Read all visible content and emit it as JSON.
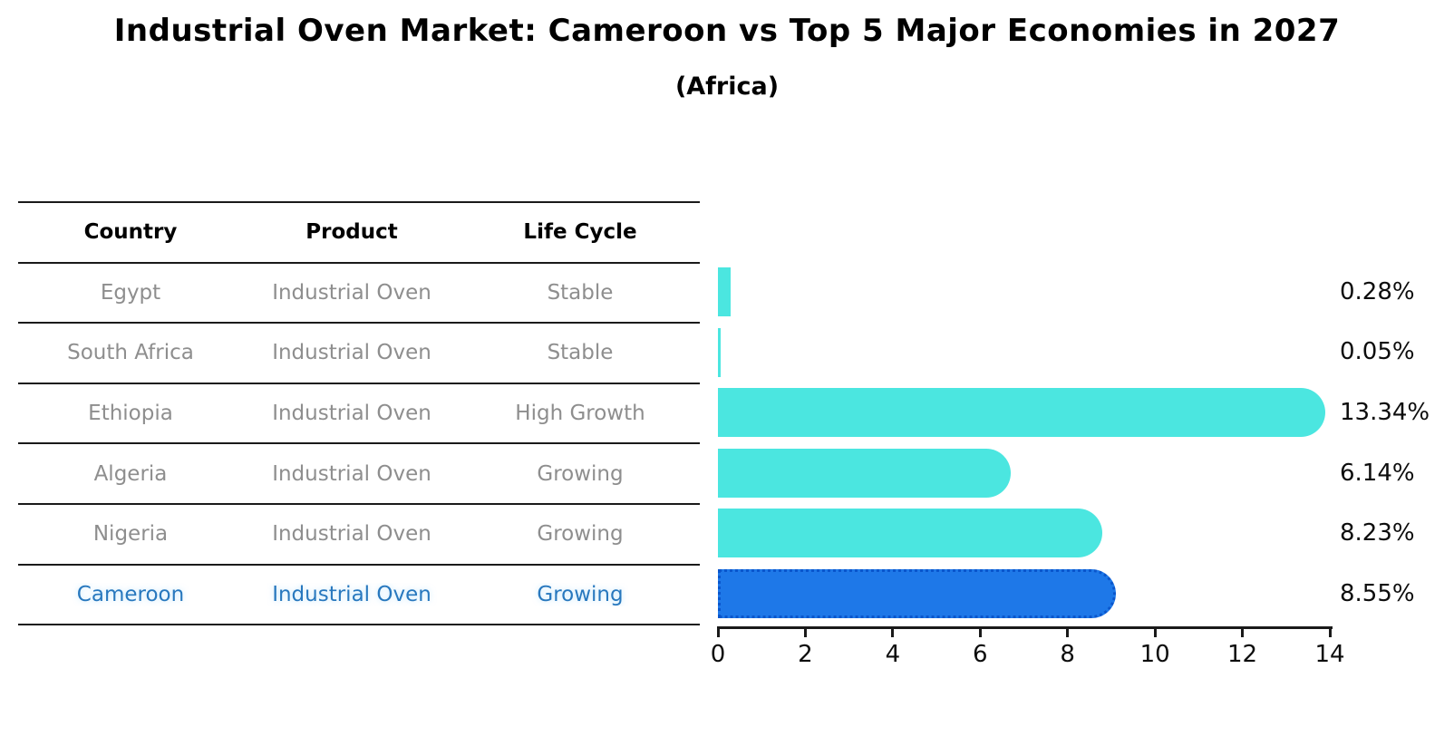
{
  "title": "Industrial Oven Market: Cameroon vs Top 5 Major Economies in 2027",
  "subtitle": "(Africa)",
  "table": {
    "headers": [
      "Country",
      "Product",
      "Life Cycle"
    ],
    "rows": [
      {
        "country": "Egypt",
        "product": "Industrial Oven",
        "life_cycle": "Stable",
        "highlight": false
      },
      {
        "country": "South Africa",
        "product": "Industrial Oven",
        "life_cycle": "Stable",
        "highlight": false
      },
      {
        "country": "Ethiopia",
        "product": "Industrial Oven",
        "life_cycle": "High Growth",
        "highlight": false
      },
      {
        "country": "Algeria",
        "product": "Industrial Oven",
        "life_cycle": "Growing",
        "highlight": false
      },
      {
        "country": "Nigeria",
        "product": "Industrial Oven",
        "life_cycle": "Growing",
        "highlight": false
      },
      {
        "country": "Cameroon",
        "product": "Industrial Oven",
        "life_cycle": "Growing",
        "highlight": true
      }
    ]
  },
  "chart_data": {
    "type": "bar",
    "orientation": "horizontal",
    "title": "Industrial Oven Market: Cameroon vs Top 5 Major Economies in 2027",
    "subtitle": "(Africa)",
    "categories": [
      "Egypt",
      "South Africa",
      "Ethiopia",
      "Algeria",
      "Nigeria",
      "Cameroon"
    ],
    "values": [
      0.28,
      0.05,
      13.34,
      6.14,
      8.23,
      8.55
    ],
    "value_labels": [
      "0.28%",
      "0.05%",
      "13.34%",
      "6.14%",
      "8.23%",
      "8.55%"
    ],
    "xlabel": "",
    "ylabel": "",
    "xlim": [
      0,
      14
    ],
    "xticks": [
      0,
      2,
      4,
      6,
      8,
      10,
      12,
      14
    ],
    "grid": false,
    "legend": "none",
    "bar_color": "#4be6e0",
    "highlight_index": 5,
    "highlight_color": "#1e78e8",
    "highlight_border_color": "#0a56cc",
    "highlight_text_color": "#2878be"
  }
}
